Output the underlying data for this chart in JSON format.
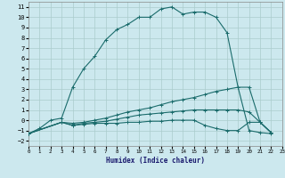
{
  "title": "",
  "xlabel": "Humidex (Indice chaleur)",
  "background_color": "#cce8ee",
  "grid_color": "#aacccc",
  "line_color": "#1a6b6b",
  "xlim": [
    0,
    23
  ],
  "ylim": [
    -2.5,
    11.5
  ],
  "xticks": [
    0,
    1,
    2,
    3,
    4,
    5,
    6,
    7,
    8,
    9,
    10,
    11,
    12,
    13,
    14,
    15,
    16,
    17,
    18,
    19,
    20,
    21,
    22,
    23
  ],
  "yticks": [
    -2,
    -1,
    0,
    1,
    2,
    3,
    4,
    5,
    6,
    7,
    8,
    9,
    10,
    11
  ],
  "series": [
    {
      "x": [
        0,
        1,
        2,
        3,
        4,
        5,
        6,
        7,
        8,
        9,
        10,
        11,
        12,
        13,
        14,
        15,
        16,
        17,
        18,
        19,
        20,
        21,
        22
      ],
      "y": [
        -1.3,
        -0.8,
        0.0,
        0.2,
        3.2,
        5.0,
        6.2,
        7.8,
        8.8,
        9.3,
        10.0,
        10.0,
        10.8,
        11.0,
        10.3,
        10.5,
        10.5,
        10.0,
        8.5,
        3.2,
        -1.0,
        -1.2,
        -1.3
      ]
    },
    {
      "x": [
        0,
        3,
        4,
        5,
        6,
        7,
        8,
        9,
        10,
        11,
        12,
        13,
        14,
        15,
        16,
        17,
        18,
        19,
        20,
        21,
        22
      ],
      "y": [
        -1.3,
        -0.2,
        -0.3,
        -0.2,
        0.0,
        0.2,
        0.5,
        0.8,
        1.0,
        1.2,
        1.5,
        1.8,
        2.0,
        2.2,
        2.5,
        2.8,
        3.0,
        3.2,
        3.2,
        -0.2,
        -1.2
      ]
    },
    {
      "x": [
        0,
        3,
        4,
        5,
        6,
        7,
        8,
        9,
        10,
        11,
        12,
        13,
        14,
        15,
        16,
        17,
        18,
        19,
        20,
        21,
        22
      ],
      "y": [
        -1.3,
        -0.2,
        -0.5,
        -0.3,
        -0.2,
        -0.1,
        0.1,
        0.3,
        0.5,
        0.6,
        0.7,
        0.8,
        0.9,
        1.0,
        1.0,
        1.0,
        1.0,
        1.0,
        0.8,
        -0.2,
        -1.2
      ]
    },
    {
      "x": [
        0,
        3,
        4,
        5,
        6,
        7,
        8,
        9,
        10,
        11,
        12,
        13,
        14,
        15,
        16,
        17,
        18,
        19,
        20,
        21,
        22
      ],
      "y": [
        -1.3,
        -0.2,
        -0.5,
        -0.4,
        -0.3,
        -0.3,
        -0.3,
        -0.2,
        -0.2,
        -0.1,
        -0.1,
        0.0,
        0.0,
        0.0,
        -0.5,
        -0.8,
        -1.0,
        -1.0,
        -0.2,
        -0.2,
        -1.2
      ]
    }
  ]
}
